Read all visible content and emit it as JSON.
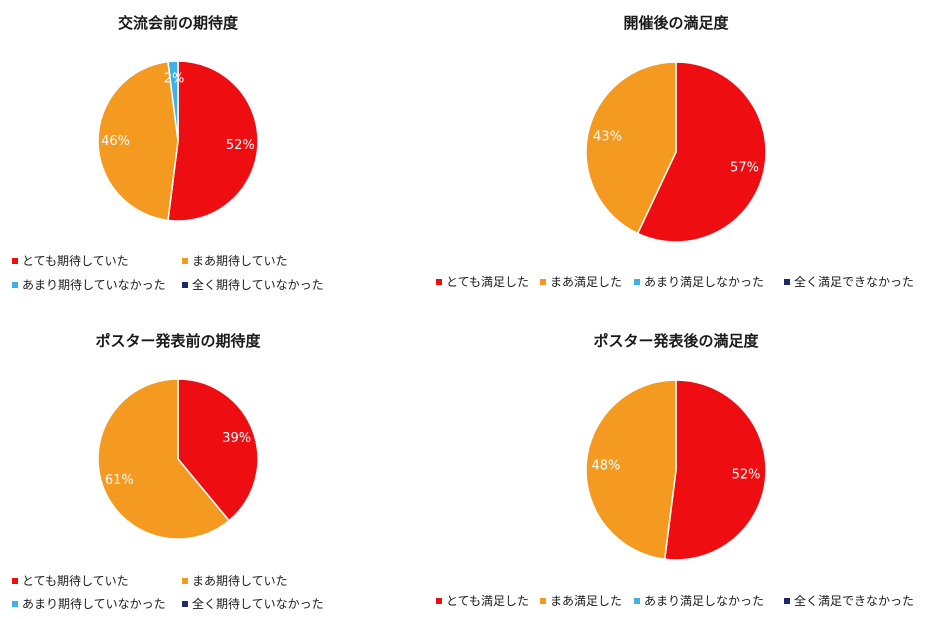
{
  "colors": {
    "very": "#ee0d10",
    "somewhat": "#f49a20",
    "not_much": "#3fb1e6",
    "not_at_all": "#1a2a6a",
    "label_text": "#ffffff"
  },
  "chart_data": [
    {
      "type": "pie",
      "title": "交流会前の期待度",
      "categories": [
        "とても期待していた",
        "まあ期待していた",
        "あまり期待していなかった",
        "全く期待していなかった"
      ],
      "values": [
        52,
        46,
        2,
        0
      ],
      "labels": [
        "52%",
        "46%",
        "2%",
        ""
      ],
      "legend": [
        "とても期待していた",
        "まあ期待していた",
        "あまり期待していなかった",
        "全く期待していなかった"
      ],
      "legend_position": "bottom"
    },
    {
      "type": "pie",
      "title": "開催後の満足度",
      "categories": [
        "とても満足した",
        "まあ満足した",
        "あまり満足しなかった",
        "全く満足できなかった"
      ],
      "values": [
        57,
        43,
        0,
        0
      ],
      "labels": [
        "57%",
        "43%",
        "",
        ""
      ],
      "legend": [
        "とても満足した",
        "まあ満足した",
        "あまり満足しなかった",
        "全く満足できなかった"
      ],
      "legend_position": "bottom"
    },
    {
      "type": "pie",
      "title": "ポスター発表前の期待度",
      "categories": [
        "とても期待していた",
        "まあ期待していた",
        "あまり期待していなかった",
        "全く期待していなかった"
      ],
      "values": [
        39,
        61,
        0,
        0
      ],
      "labels": [
        "39%",
        "61%",
        "",
        ""
      ],
      "legend": [
        "とても期待していた",
        "まあ期待していた",
        "あまり期待していなかった",
        "全く期待していなかった"
      ],
      "legend_position": "bottom"
    },
    {
      "type": "pie",
      "title": "ポスター発表後の満足度",
      "categories": [
        "とても満足した",
        "まあ満足した",
        "あまり満足しなかった",
        "全く満足できなかった"
      ],
      "values": [
        52,
        48,
        0,
        0
      ],
      "labels": [
        "52%",
        "48%",
        "",
        ""
      ],
      "legend": [
        "とても満足した",
        "まあ満足した",
        "あまり満足しなかった",
        "全く満足できなかった"
      ],
      "legend_position": "bottom"
    }
  ]
}
